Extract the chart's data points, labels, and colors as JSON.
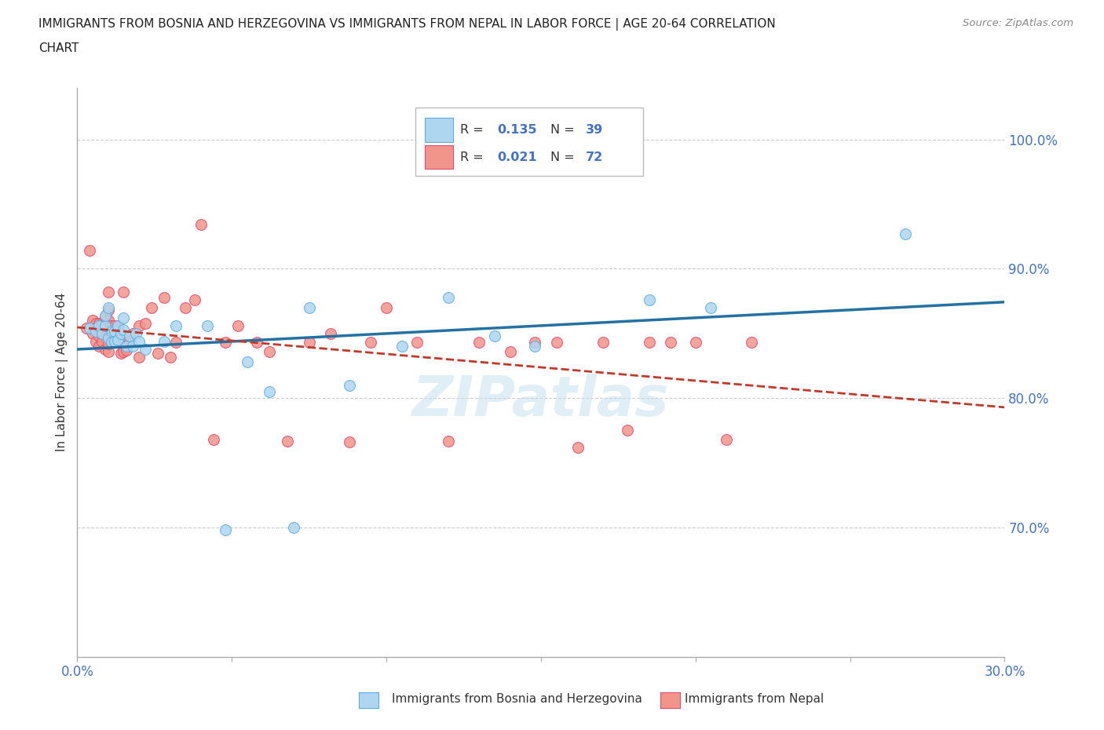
{
  "title_line1": "IMMIGRANTS FROM BOSNIA AND HERZEGOVINA VS IMMIGRANTS FROM NEPAL IN LABOR FORCE | AGE 20-64 CORRELATION",
  "title_line2": "CHART",
  "source_text": "Source: ZipAtlas.com",
  "ylabel": "In Labor Force | Age 20-64",
  "xlim": [
    0.0,
    0.3
  ],
  "ylim": [
    0.6,
    1.04
  ],
  "xticks": [
    0.0,
    0.05,
    0.1,
    0.15,
    0.2,
    0.25,
    0.3
  ],
  "xticklabels": [
    "0.0%",
    "",
    "",
    "",
    "",
    "",
    "30.0%"
  ],
  "ytick_vals": [
    0.7,
    0.8,
    0.9,
    1.0
  ],
  "yticklabels_right": [
    "70.0%",
    "80.0%",
    "90.0%",
    "100.0%"
  ],
  "watermark": "ZIPatlas",
  "legend_bosnia_R": "0.135",
  "legend_bosnia_N": "39",
  "legend_nepal_R": "0.021",
  "legend_nepal_N": "72",
  "color_bosnia_fill": "#AED6F1",
  "color_bosnia_edge": "#5DADE2",
  "color_bosnia_line": "#2471A3",
  "color_nepal_fill": "#F1948A",
  "color_nepal_edge": "#E74C6F",
  "color_nepal_line": "#C0392B",
  "color_text_blue": "#4472C4",
  "color_text_dark": "#333333",
  "color_grid": "#CCCCCC",
  "nepal_line_style": "--",
  "bosnia_x": [
    0.004,
    0.006,
    0.007,
    0.008,
    0.009,
    0.009,
    0.01,
    0.01,
    0.011,
    0.011,
    0.012,
    0.012,
    0.013,
    0.013,
    0.014,
    0.015,
    0.015,
    0.016,
    0.017,
    0.018,
    0.019,
    0.02,
    0.022,
    0.028,
    0.032,
    0.042,
    0.048,
    0.055,
    0.062,
    0.07,
    0.075,
    0.088,
    0.105,
    0.12,
    0.135,
    0.148,
    0.185,
    0.205,
    0.268
  ],
  "bosnia_y": [
    0.854,
    0.852,
    0.856,
    0.85,
    0.856,
    0.864,
    0.846,
    0.87,
    0.843,
    0.852,
    0.844,
    0.852,
    0.845,
    0.856,
    0.85,
    0.853,
    0.862,
    0.84,
    0.848,
    0.84,
    0.85,
    0.844,
    0.838,
    0.844,
    0.856,
    0.856,
    0.698,
    0.828,
    0.805,
    0.7,
    0.87,
    0.81,
    0.84,
    0.878,
    0.848,
    0.84,
    0.876,
    0.87,
    0.927
  ],
  "nepal_x": [
    0.003,
    0.004,
    0.005,
    0.005,
    0.006,
    0.006,
    0.007,
    0.007,
    0.007,
    0.008,
    0.008,
    0.008,
    0.009,
    0.009,
    0.009,
    0.01,
    0.01,
    0.01,
    0.01,
    0.01,
    0.01,
    0.01,
    0.011,
    0.011,
    0.012,
    0.012,
    0.013,
    0.013,
    0.014,
    0.014,
    0.015,
    0.015,
    0.015,
    0.016,
    0.017,
    0.018,
    0.02,
    0.02,
    0.022,
    0.024,
    0.026,
    0.028,
    0.03,
    0.032,
    0.035,
    0.038,
    0.04,
    0.044,
    0.048,
    0.052,
    0.058,
    0.062,
    0.068,
    0.075,
    0.082,
    0.088,
    0.095,
    0.1,
    0.11,
    0.12,
    0.13,
    0.14,
    0.148,
    0.155,
    0.162,
    0.17,
    0.178,
    0.185,
    0.192,
    0.2,
    0.21,
    0.218
  ],
  "nepal_y": [
    0.854,
    0.914,
    0.86,
    0.85,
    0.844,
    0.858,
    0.84,
    0.848,
    0.858,
    0.844,
    0.85,
    0.858,
    0.854,
    0.838,
    0.863,
    0.836,
    0.842,
    0.847,
    0.854,
    0.86,
    0.868,
    0.882,
    0.848,
    0.856,
    0.844,
    0.856,
    0.843,
    0.856,
    0.85,
    0.835,
    0.836,
    0.843,
    0.882,
    0.837,
    0.844,
    0.85,
    0.832,
    0.856,
    0.858,
    0.87,
    0.835,
    0.878,
    0.832,
    0.843,
    0.87,
    0.876,
    0.934,
    0.768,
    0.843,
    0.856,
    0.843,
    0.836,
    0.767,
    0.843,
    0.85,
    0.766,
    0.843,
    0.87,
    0.843,
    0.767,
    0.843,
    0.836,
    0.843,
    0.843,
    0.762,
    0.843,
    0.775,
    0.843,
    0.843,
    0.843,
    0.768,
    0.843
  ]
}
